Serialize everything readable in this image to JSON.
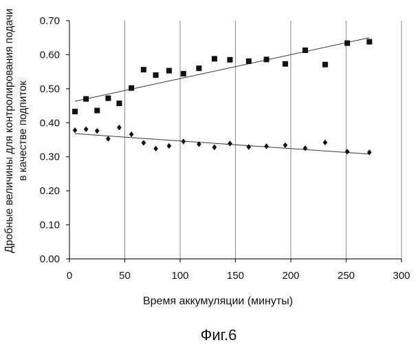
{
  "figure_caption": "Фиг.6",
  "chart_data": {
    "type": "scatter",
    "title": "",
    "xlabel": "Время аккумуляции (минуты)",
    "ylabel_lines": [
      "Дробные величины для контролирования подачи",
      "в качестве подпиток"
    ],
    "xlim": [
      0,
      300
    ],
    "ylim": [
      0.0,
      0.7
    ],
    "x_ticks": [
      0,
      50,
      100,
      150,
      200,
      250,
      300
    ],
    "y_ticks": [
      0.0,
      0.1,
      0.2,
      0.3,
      0.4,
      0.5,
      0.6,
      0.7
    ],
    "x_tick_labels": [
      "0",
      "50",
      "100",
      "150",
      "200",
      "250",
      "300"
    ],
    "y_tick_labels": [
      "0.00",
      "0.10",
      "0.20",
      "0.30",
      "0.40",
      "0.50",
      "0.60",
      "0.70"
    ],
    "grid": "vertical",
    "legend": "none",
    "series": [
      {
        "marker": "square",
        "color": "#111111",
        "x": [
          5,
          15,
          25,
          35,
          45,
          56,
          67,
          78,
          90,
          103,
          117,
          131,
          145,
          162,
          178,
          195,
          213,
          231,
          251,
          271
        ],
        "y": [
          0.433,
          0.47,
          0.436,
          0.472,
          0.457,
          0.502,
          0.556,
          0.54,
          0.553,
          0.544,
          0.56,
          0.588,
          0.585,
          0.581,
          0.586,
          0.573,
          0.613,
          0.571,
          0.634,
          0.638
        ],
        "trendline": {
          "x": [
            5,
            271
          ],
          "y": [
            0.463,
            0.65
          ]
        }
      },
      {
        "marker": "diamond",
        "color": "#111111",
        "x": [
          5,
          15,
          25,
          35,
          45,
          56,
          67,
          78,
          90,
          103,
          117,
          131,
          145,
          162,
          178,
          195,
          213,
          231,
          251,
          271
        ],
        "y": [
          0.378,
          0.381,
          0.376,
          0.353,
          0.386,
          0.366,
          0.341,
          0.324,
          0.332,
          0.345,
          0.337,
          0.328,
          0.339,
          0.329,
          0.331,
          0.334,
          0.325,
          0.342,
          0.315,
          0.313
        ],
        "trendline": {
          "x": [
            5,
            271
          ],
          "y": [
            0.368,
            0.308
          ]
        }
      }
    ]
  }
}
